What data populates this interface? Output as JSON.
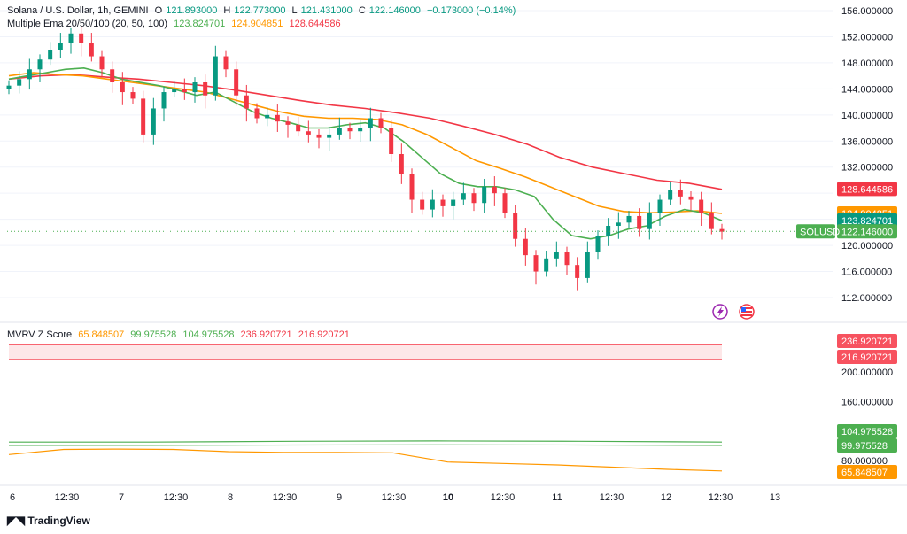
{
  "header": {
    "symbol_title": "Solana / U.S. Dollar, 1h, GEMINI",
    "ohlc": {
      "o_label": "O",
      "open": "121.893000",
      "h_label": "H",
      "high": "122.773000",
      "l_label": "L",
      "low": "121.431000",
      "c_label": "C",
      "close": "122.146000",
      "change": "−0.173000 (−0.14%)"
    },
    "ema_label": "Multiple Ema 20/50/100 (20, 50, 100)",
    "ema_values": [
      "123.824701",
      "124.904851",
      "128.644586"
    ]
  },
  "mvrv": {
    "label": "MVRV Z Score",
    "values": [
      "65.848507",
      "99.975528",
      "104.975528",
      "236.920721",
      "216.920721"
    ]
  },
  "price_axis": {
    "ticks": [
      "156.000000",
      "152.000000",
      "148.000000",
      "144.000000",
      "140.000000",
      "136.000000",
      "132.000000",
      "120.000000",
      "116.000000",
      "112.000000"
    ],
    "badges": [
      {
        "text": "128.644586",
        "color": "#f23645",
        "value": 128.644586
      },
      {
        "text": "124.904851",
        "color": "#ff9800",
        "value": 124.904851
      },
      {
        "text": "123.824701",
        "color": "#089981",
        "value": 123.824701
      },
      {
        "text": "122.146000",
        "color": "#4caf50",
        "value": 122.146
      }
    ],
    "symbol_badge": "SOLUSD"
  },
  "mvrv_axis": {
    "ticks": [
      "200.000000",
      "160.000000",
      "80.000000"
    ],
    "badges": [
      {
        "text": "236.920721",
        "color": "#f7525f",
        "value": 236.920721
      },
      {
        "text": "216.920721",
        "color": "#f7525f",
        "value": 216.920721
      },
      {
        "text": "104.975528",
        "color": "#4caf50",
        "value": 104.975528
      },
      {
        "text": "99.975528",
        "color": "#4caf50",
        "value": 99.975528
      },
      {
        "text": "65.848507",
        "color": "#ff9800",
        "value": 65.848507
      }
    ]
  },
  "time_axis": {
    "labels": [
      "6",
      "12:30",
      "7",
      "12:30",
      "8",
      "12:30",
      "9",
      "12:30",
      "10",
      "12:30",
      "11",
      "12:30",
      "12",
      "12:30",
      "13"
    ]
  },
  "branding": "TradingView",
  "chart_data": {
    "type": "candlestick",
    "symbol": "SOLUSD",
    "interval": "1h",
    "price_range": [
      110,
      157
    ],
    "candles_approx_close": [
      144.5,
      145.5,
      147,
      148.5,
      150,
      151,
      152.5,
      151,
      149,
      147,
      145,
      143.5,
      142.5,
      137,
      141,
      143.5,
      144,
      143.5,
      145,
      143,
      149,
      147,
      143,
      141,
      139.5,
      140,
      139,
      138.5,
      137.5,
      137,
      136.5,
      137,
      138,
      137.5,
      138,
      139.5,
      138,
      134,
      131,
      127,
      125.5,
      127,
      126,
      127,
      128,
      126.5,
      129,
      128,
      125,
      121,
      118.5,
      116,
      118,
      119,
      117,
      115,
      119,
      121.5,
      123,
      123.5,
      124.5,
      122.5,
      125,
      127,
      128.5,
      127.5,
      127,
      125,
      122.5,
      122.1
    ],
    "ema20_approx": [
      145.5,
      146,
      146.5,
      147,
      147.2,
      146.5,
      145.5,
      145,
      144.5,
      143.8,
      143,
      143.5,
      142,
      140.5,
      139.5,
      138.8,
      138,
      138,
      138.5,
      138.8,
      138,
      136,
      133.5,
      131,
      129.5,
      129,
      129,
      128.5,
      127.5,
      124,
      121.5,
      121,
      121.5,
      122.5,
      123,
      124.5,
      125.5,
      125,
      123.8
    ],
    "ema50_approx": [
      146,
      146.5,
      146.2,
      146,
      145.5,
      145,
      144.5,
      144,
      143.5,
      142.5,
      141.5,
      140.5,
      139.8,
      139.5,
      139.5,
      139.3,
      138.5,
      137,
      135,
      133,
      131.8,
      130.5,
      129,
      127.5,
      126,
      125.2,
      125,
      125.1,
      125.3,
      124.9
    ],
    "ema100_approx": [
      145.5,
      146,
      146.2,
      145.8,
      145.5,
      145,
      144.5,
      143.8,
      143,
      142.2,
      141.5,
      141,
      140.3,
      139.5,
      138.3,
      137,
      135.5,
      133.5,
      132,
      131,
      130,
      129.5,
      128.6
    ],
    "mvrv_series": [
      {
        "values": [
          236.9,
          236.9
        ]
      },
      {
        "values": [
          216.9,
          216.9
        ]
      },
      {
        "values": [
          104.98,
          105.0,
          106,
          106.5,
          106,
          104.98
        ]
      },
      {
        "values": [
          99.98,
          100,
          101,
          101.5,
          101,
          99.98
        ]
      },
      {
        "values": [
          88,
          95,
          95.5,
          95,
          92,
          91,
          91,
          90.5,
          78,
          76,
          74,
          71,
          68,
          65.85
        ]
      }
    ],
    "mvrv_range": [
      70,
      255
    ]
  }
}
